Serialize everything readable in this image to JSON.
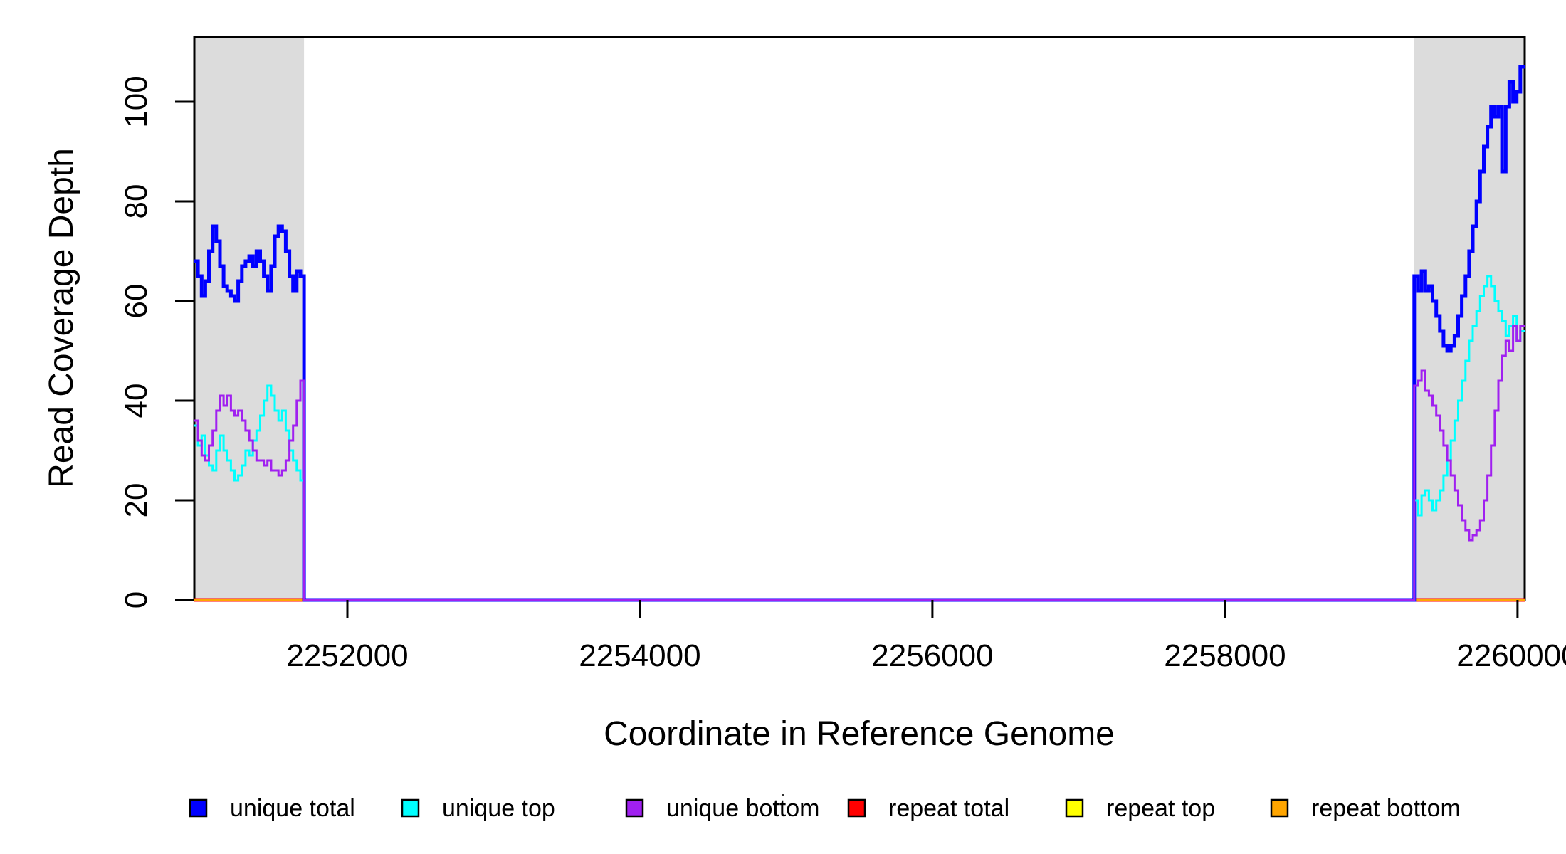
{
  "chart_data": {
    "type": "step-line",
    "title": "",
    "xlabel": "Coordinate in Reference Genome",
    "ylabel": "Read Coverage Depth",
    "xlim": [
      2250954,
      2260049
    ],
    "ylim": [
      0,
      113
    ],
    "grid": false,
    "x_ticks": [
      {
        "value": 2252000,
        "label": "2252000"
      },
      {
        "value": 2254000,
        "label": "2254000"
      },
      {
        "value": 2256000,
        "label": "2256000"
      },
      {
        "value": 2258000,
        "label": "2258000"
      },
      {
        "value": 2260000,
        "label": "2260000"
      }
    ],
    "y_ticks": [
      {
        "value": 0,
        "label": "0"
      },
      {
        "value": 20,
        "label": "20"
      },
      {
        "value": 40,
        "label": "40"
      },
      {
        "value": 60,
        "label": "60"
      },
      {
        "value": 80,
        "label": "80"
      },
      {
        "value": 100,
        "label": "100"
      }
    ],
    "repeat_regions": [
      [
        2250954,
        2251704
      ],
      [
        2259294,
        2260049
      ]
    ],
    "repeat_region_color": "#DCDCDC",
    "series": [
      {
        "name": "repeat total",
        "color": "#FF0000",
        "width": 5,
        "kind": "repeat",
        "value": 0
      },
      {
        "name": "repeat top",
        "color": "#FFFF00",
        "width": 3,
        "kind": "repeat",
        "value": 0
      },
      {
        "name": "repeat bottom",
        "color": "#FFA500",
        "width": 3,
        "kind": "repeat",
        "value": 0
      },
      {
        "name": "unique total",
        "color": "#0000FF",
        "width": 5,
        "kind": "unique",
        "between_value": 0,
        "segments": [
          {
            "x_start": 2250954,
            "x_step": 25,
            "values": [
              68,
              65,
              61,
              64,
              70,
              75,
              72,
              67,
              63,
              62,
              61,
              60,
              64,
              67,
              68,
              69,
              67,
              70,
              68,
              65,
              62,
              67,
              73,
              75,
              74,
              70,
              65,
              62,
              66,
              65
            ]
          },
          {
            "x_start": 2259294,
            "x_step": 25,
            "values": [
              65,
              62,
              66,
              62,
              63,
              60,
              57,
              54,
              51,
              50,
              51,
              53,
              57,
              61,
              65,
              70,
              75,
              80,
              86,
              91,
              95,
              99,
              97,
              99,
              86,
              99,
              104,
              100,
              102,
              107
            ]
          }
        ]
      },
      {
        "name": "unique top",
        "color": "#00FFFF",
        "width": 3,
        "kind": "unique",
        "between_value": 0,
        "segments": [
          {
            "x_start": 2250954,
            "x_step": 25,
            "values": [
              35,
              31,
              33,
              29,
              27,
              26,
              30,
              33,
              30,
              28,
              26,
              24,
              25,
              27,
              30,
              29,
              32,
              34,
              37,
              40,
              43,
              41,
              38,
              36,
              38,
              34,
              30,
              28,
              26,
              24
            ]
          },
          {
            "x_start": 2259294,
            "x_step": 25,
            "values": [
              20,
              17,
              21,
              22,
              20,
              18,
              20,
              22,
              25,
              28,
              32,
              36,
              40,
              44,
              48,
              52,
              55,
              58,
              61,
              63,
              65,
              63,
              60,
              58,
              56,
              53,
              55,
              57,
              52,
              54
            ]
          }
        ]
      },
      {
        "name": "unique bottom",
        "color": "#A020F0",
        "width": 3,
        "kind": "unique",
        "between_value": 0,
        "segments": [
          {
            "x_start": 2250954,
            "x_step": 25,
            "values": [
              36,
              32,
              29,
              28,
              31,
              34,
              38,
              41,
              39,
              41,
              38,
              37,
              38,
              36,
              34,
              32,
              30,
              28,
              28,
              27,
              28,
              26,
              26,
              25,
              26,
              28,
              32,
              35,
              40,
              44
            ]
          },
          {
            "x_start": 2259294,
            "x_step": 25,
            "values": [
              43,
              44,
              46,
              42,
              41,
              39,
              37,
              34,
              31,
              28,
              25,
              22,
              19,
              16,
              14,
              12,
              13,
              14,
              16,
              20,
              25,
              31,
              38,
              44,
              49,
              52,
              50,
              55,
              52,
              55
            ]
          }
        ]
      }
    ],
    "legend": {
      "position": "bottom",
      "items": [
        {
          "label": "unique total",
          "color": "#0000FF"
        },
        {
          "label": "unique top",
          "color": "#00FFFF"
        },
        {
          "label": "unique bottom",
          "color": "#A020F0"
        },
        {
          "label": "repeat total",
          "color": "#FF0000"
        },
        {
          "label": "repeat top",
          "color": "#FFFF00"
        },
        {
          "label": "repeat bottom",
          "color": "#FFA500"
        }
      ]
    }
  }
}
